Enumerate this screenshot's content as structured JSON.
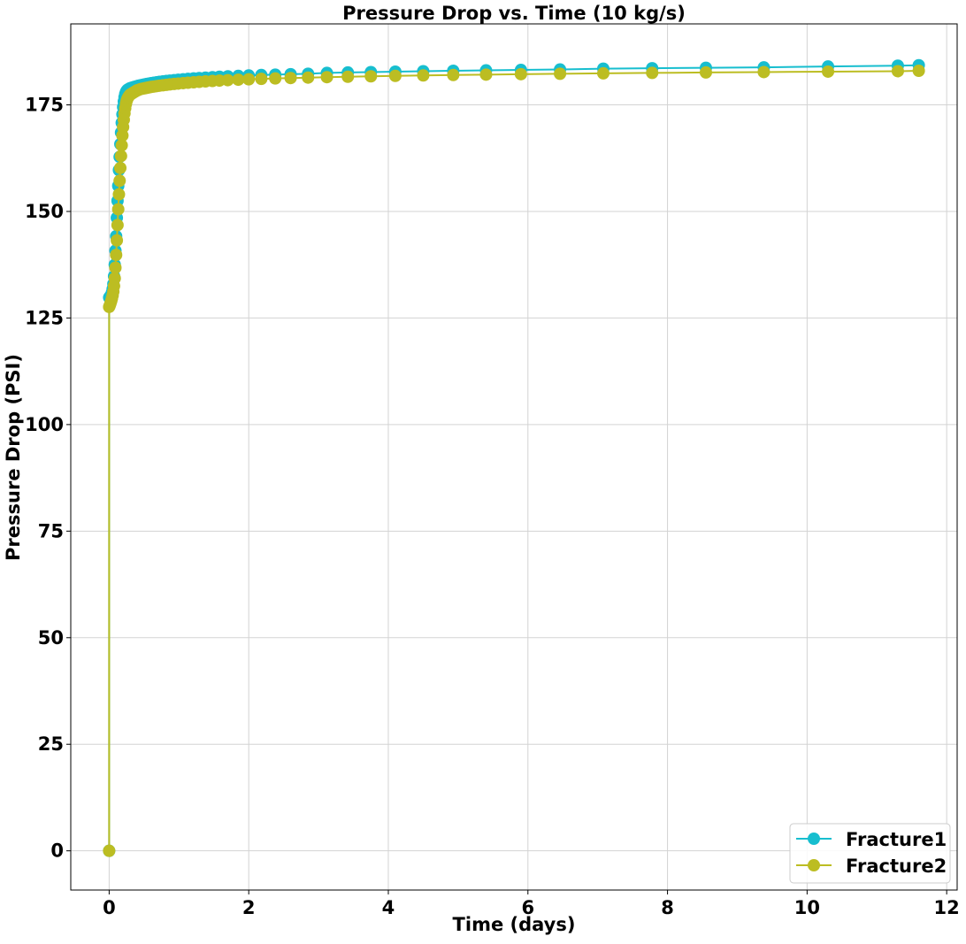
{
  "chart_data": {
    "type": "line",
    "title": "Pressure Drop vs. Time (10 kg/s)",
    "xlabel": "Time (days)",
    "ylabel": "Pressure Drop (PSI)",
    "xlim": [
      -0.55,
      12.15
    ],
    "ylim": [
      -9.2,
      194.0
    ],
    "xticks": [
      0,
      2,
      4,
      6,
      8,
      10,
      12
    ],
    "yticks": [
      0,
      25,
      50,
      75,
      100,
      125,
      150,
      175
    ],
    "grid": true,
    "legend_position": "lower-right",
    "series": [
      {
        "name": "Fracture1",
        "color": "#17becf",
        "x": [
          0,
          0,
          0.01,
          0.02,
          0.03,
          0.04,
          0.05,
          0.06,
          0.07,
          0.08,
          0.09,
          0.1,
          0.11,
          0.12,
          0.13,
          0.14,
          0.15,
          0.16,
          0.17,
          0.18,
          0.19,
          0.2,
          0.21,
          0.22,
          0.23,
          0.24,
          0.25,
          0.26,
          0.27,
          0.28,
          0.29,
          0.3,
          0.32,
          0.34,
          0.36,
          0.38,
          0.4,
          0.42,
          0.45,
          0.48,
          0.51,
          0.54,
          0.57,
          0.6,
          0.64,
          0.68,
          0.72,
          0.77,
          0.82,
          0.87,
          0.93,
          0.99,
          1.06,
          1.13,
          1.21,
          1.29,
          1.38,
          1.48,
          1.58,
          1.7,
          1.85,
          2.0,
          2.18,
          2.38,
          2.6,
          2.85,
          3.12,
          3.42,
          3.75,
          4.1,
          4.5,
          4.93,
          5.4,
          5.9,
          6.46,
          7.08,
          7.78,
          8.55,
          9.38,
          10.3,
          11.3,
          11.6
        ],
        "y": [
          0,
          129.8,
          130.0,
          130.2,
          130.5,
          131.0,
          131.8,
          133.0,
          134.8,
          137.5,
          140.8,
          144.2,
          148.5,
          152.5,
          156.0,
          159.7,
          162.8,
          165.8,
          168.5,
          170.8,
          172.8,
          174.5,
          175.8,
          176.8,
          177.5,
          178.0,
          178.3,
          178.5,
          178.6,
          178.7,
          178.8,
          178.9,
          179.0,
          179.1,
          179.2,
          179.3,
          179.4,
          179.5,
          179.6,
          179.7,
          179.8,
          179.9,
          180.0,
          180.1,
          180.2,
          180.3,
          180.4,
          180.5,
          180.6,
          180.7,
          180.8,
          180.9,
          181.0,
          181.1,
          181.2,
          181.3,
          181.4,
          181.5,
          181.6,
          181.7,
          181.8,
          181.9,
          182.0,
          182.1,
          182.2,
          182.3,
          182.5,
          182.6,
          182.7,
          182.8,
          182.9,
          183.0,
          183.1,
          183.2,
          183.3,
          183.5,
          183.6,
          183.7,
          183.8,
          184.0,
          184.2,
          184.3
        ]
      },
      {
        "name": "Fracture2",
        "color": "#bcbd22",
        "x": [
          0,
          0,
          0.01,
          0.02,
          0.03,
          0.04,
          0.05,
          0.06,
          0.07,
          0.08,
          0.09,
          0.1,
          0.11,
          0.12,
          0.13,
          0.14,
          0.15,
          0.16,
          0.17,
          0.18,
          0.19,
          0.2,
          0.21,
          0.22,
          0.23,
          0.24,
          0.25,
          0.26,
          0.27,
          0.28,
          0.29,
          0.3,
          0.32,
          0.34,
          0.36,
          0.38,
          0.4,
          0.42,
          0.45,
          0.48,
          0.51,
          0.54,
          0.57,
          0.6,
          0.64,
          0.68,
          0.72,
          0.77,
          0.82,
          0.87,
          0.93,
          0.99,
          1.06,
          1.13,
          1.21,
          1.29,
          1.38,
          1.48,
          1.58,
          1.7,
          1.85,
          2.0,
          2.18,
          2.38,
          2.6,
          2.85,
          3.12,
          3.42,
          3.75,
          4.1,
          4.5,
          4.93,
          5.4,
          5.9,
          6.46,
          7.08,
          7.78,
          8.55,
          9.38,
          10.3,
          11.3,
          11.6
        ],
        "y": [
          0,
          127.6,
          128.0,
          128.5,
          129.0,
          129.6,
          130.3,
          131.2,
          132.5,
          134.3,
          136.8,
          139.8,
          143.2,
          146.8,
          150.5,
          154.0,
          157.2,
          160.2,
          163.0,
          165.5,
          167.8,
          169.8,
          171.5,
          173.0,
          174.2,
          175.2,
          175.9,
          176.4,
          176.7,
          177.0,
          177.2,
          177.4,
          177.6,
          177.8,
          178.0,
          178.2,
          178.4,
          178.5,
          178.7,
          178.8,
          178.9,
          179.0,
          179.1,
          179.2,
          179.3,
          179.4,
          179.5,
          179.6,
          179.7,
          179.8,
          179.9,
          180.0,
          180.1,
          180.2,
          180.3,
          180.4,
          180.5,
          180.6,
          180.7,
          180.8,
          180.9,
          181.0,
          181.1,
          181.2,
          181.3,
          181.4,
          181.5,
          181.6,
          181.7,
          181.8,
          181.9,
          182.0,
          182.1,
          182.2,
          182.3,
          182.4,
          182.5,
          182.6,
          182.7,
          182.8,
          182.9,
          183.0
        ]
      }
    ]
  }
}
